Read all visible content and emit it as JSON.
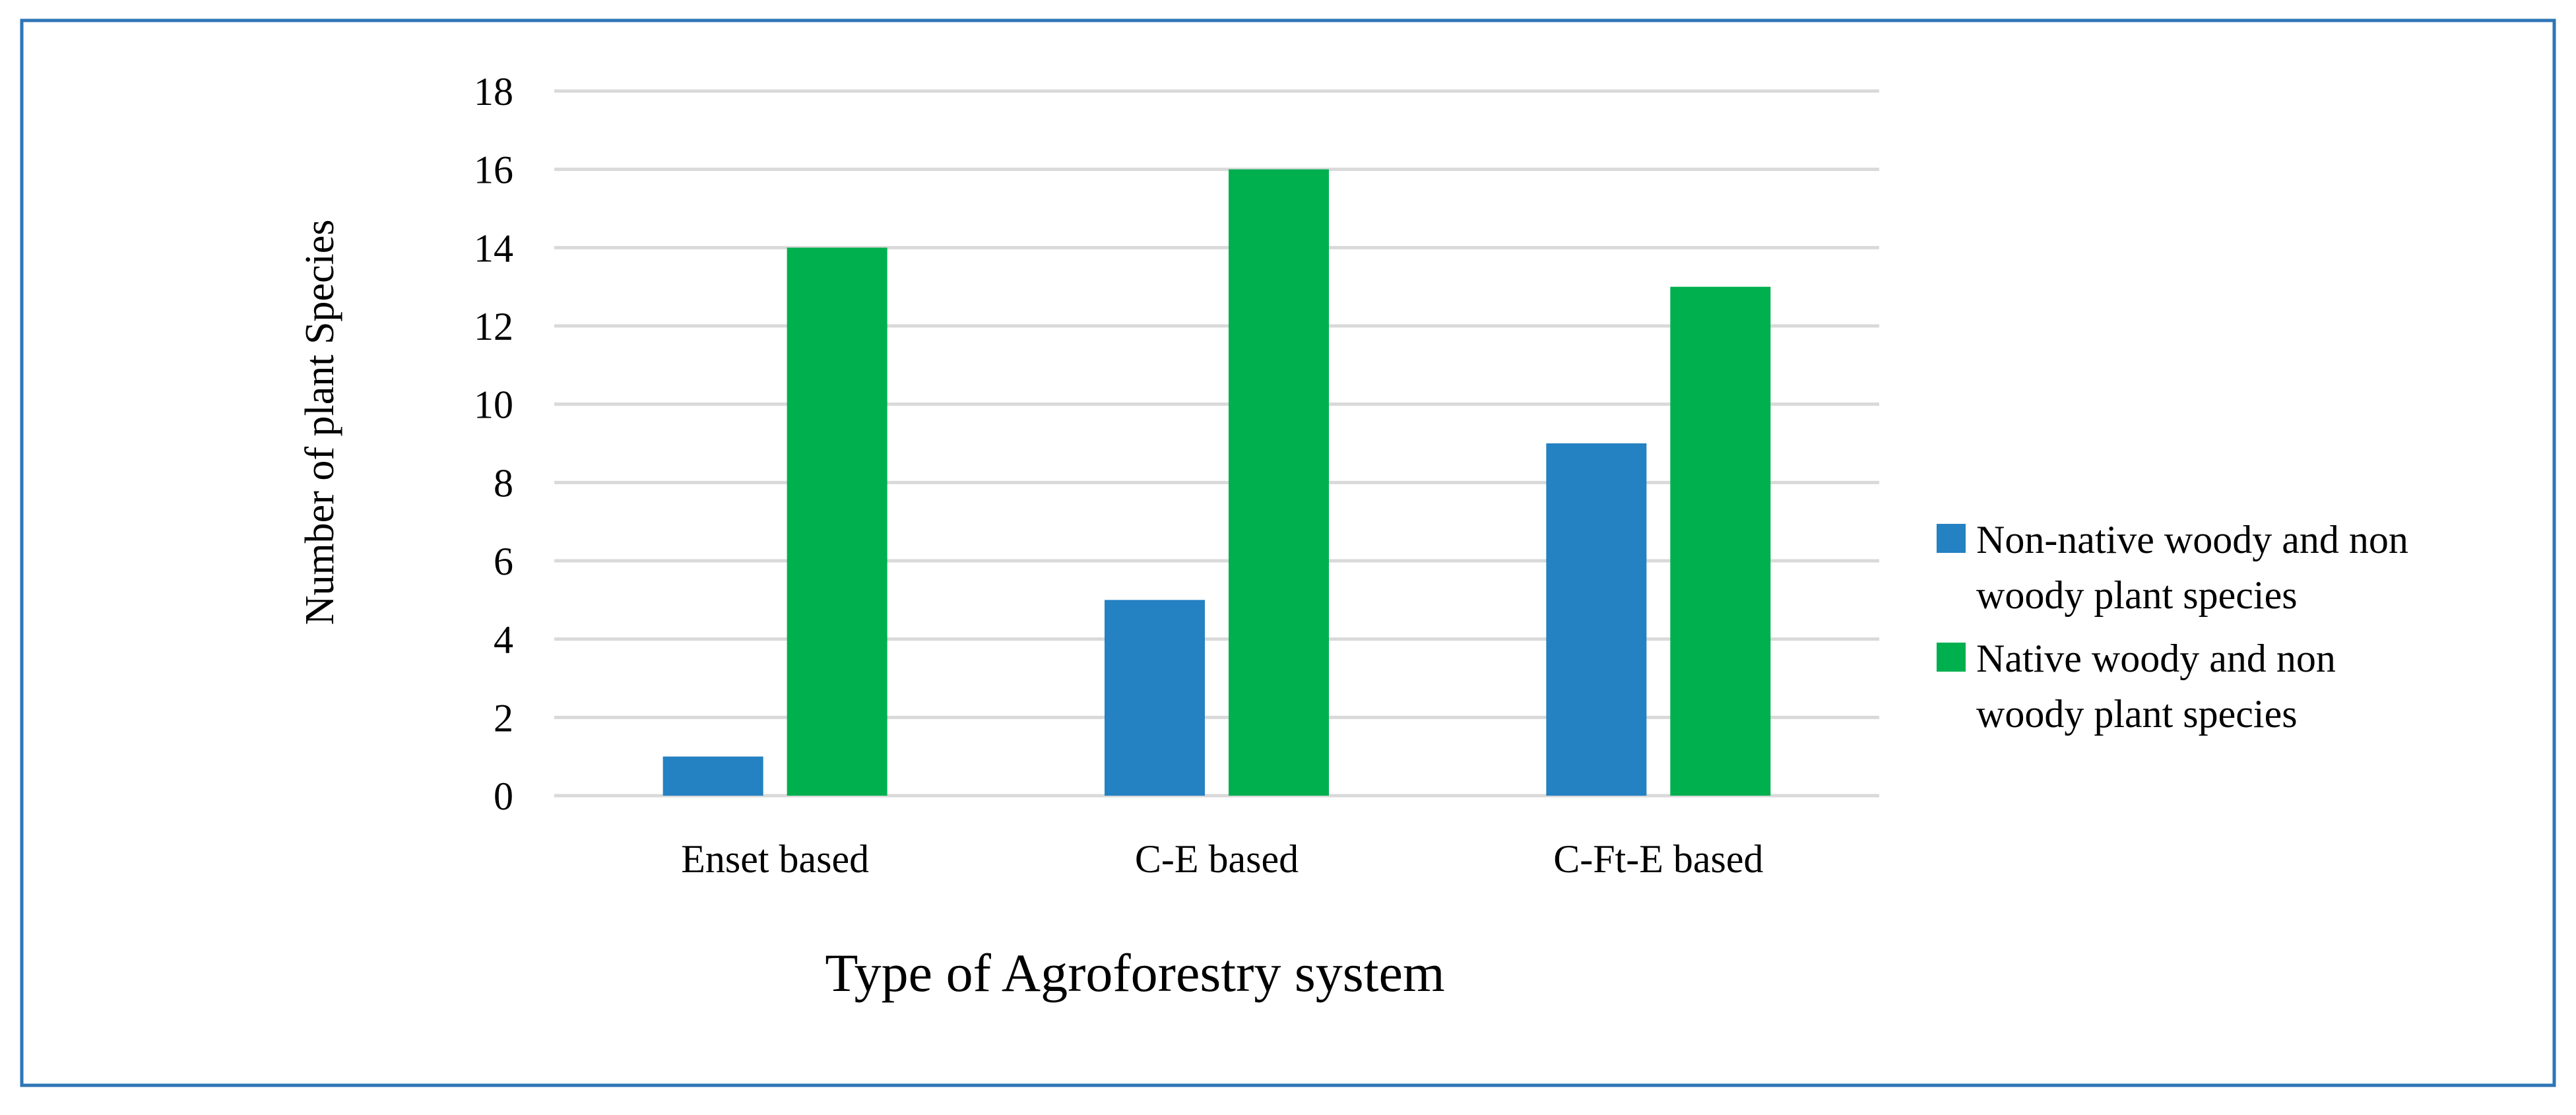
{
  "chart_data": {
    "type": "bar",
    "title": "",
    "xlabel": "Type of Agroforestry system",
    "ylabel": "Number of plant Species",
    "categories": [
      "Enset based",
      "C-E based",
      "C-Ft-E based"
    ],
    "series": [
      {
        "name": "Non-native woody and non woody plant species",
        "legend_lines": [
          "Non-native woody and non",
          "woody plant species"
        ],
        "color": "#2481c2",
        "values": [
          1,
          5,
          9
        ]
      },
      {
        "name": "Native woody and non woody plant species",
        "legend_lines": [
          "Native woody and non",
          "woody plant species"
        ],
        "color": "#00b04f",
        "values": [
          14,
          16,
          13
        ]
      }
    ],
    "ylim": [
      0,
      18
    ],
    "yticks": [
      0,
      2,
      4,
      6,
      8,
      10,
      12,
      14,
      16,
      18
    ],
    "grid": true,
    "legend_position": "right"
  },
  "colors": {
    "frame_border": "#2e75b6",
    "gridline": "#d9d9d9"
  }
}
